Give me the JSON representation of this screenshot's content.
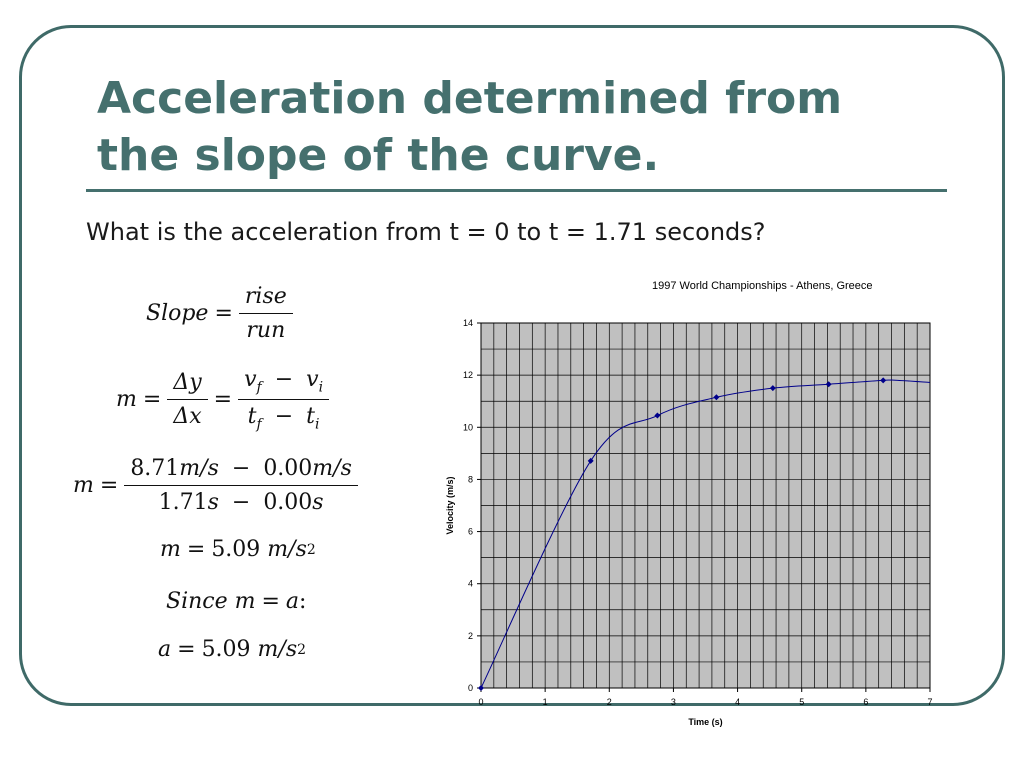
{
  "slide": {
    "title_line1": "Acceleration determined from",
    "title_line2": "the slope of the curve.",
    "question": "What is the acceleration from t = 0 to t = 1.71 seconds?",
    "colors": {
      "accent": "#45706e",
      "plot_bg": "#c0c0c0",
      "series": "#00008b"
    }
  },
  "equations": {
    "slope": {
      "lhs": "Slope",
      "eq": "=",
      "num": "rise",
      "den": "run"
    },
    "m_def": {
      "lhs": "m",
      "eq": "=",
      "num1": "Δy",
      "den1": "Δx",
      "eq2": "=",
      "num2_a": "v",
      "num2_a_sub": "f",
      "num2_op": "−",
      "num2_b": "v",
      "num2_b_sub": "i",
      "den2_a": "t",
      "den2_a_sub": "f",
      "den2_op": "−",
      "den2_b": "t",
      "den2_b_sub": "i"
    },
    "m_values": {
      "lhs": "m",
      "eq": "=",
      "num_a": "8.71",
      "num_a_unit": "m/s",
      "num_op": "−",
      "num_b": "0.00",
      "num_b_unit": "m/s",
      "den_a": "1.71",
      "den_a_unit": "s",
      "den_op": "−",
      "den_b": "0.00",
      "den_b_unit": "s"
    },
    "m_result": {
      "lhs": "m",
      "eq": "=",
      "value": "5.09",
      "unit": "m/s",
      "unit_sup": "2"
    },
    "since": {
      "text": "Since m",
      "eq": "=",
      "rhs": "a",
      "colon": ":"
    },
    "a_result": {
      "lhs": "a",
      "eq": "=",
      "value": "5.09",
      "unit": "m/s",
      "unit_sup": "2"
    }
  },
  "chart_data": {
    "type": "line",
    "title": "1997 World Championships - Athens, Greece",
    "xlabel": "Time (s)",
    "ylabel": "Velocity (m/s)",
    "xlim": [
      0,
      7
    ],
    "ylim": [
      0,
      14
    ],
    "grid": true,
    "xticks": [
      0,
      1,
      2,
      3,
      4,
      5,
      6,
      7
    ],
    "yticks": [
      0,
      2,
      4,
      6,
      8,
      10,
      12,
      14
    ],
    "series": [
      {
        "x": [
          0,
          1.71,
          2.75,
          3.67,
          4.55,
          5.42,
          6.27
        ],
        "y": [
          0,
          8.71,
          10.45,
          11.15,
          11.5,
          11.65,
          11.8
        ]
      }
    ],
    "curve_tail": {
      "x": [
        6.5,
        7.0
      ],
      "y": [
        11.8,
        11.72
      ]
    }
  }
}
